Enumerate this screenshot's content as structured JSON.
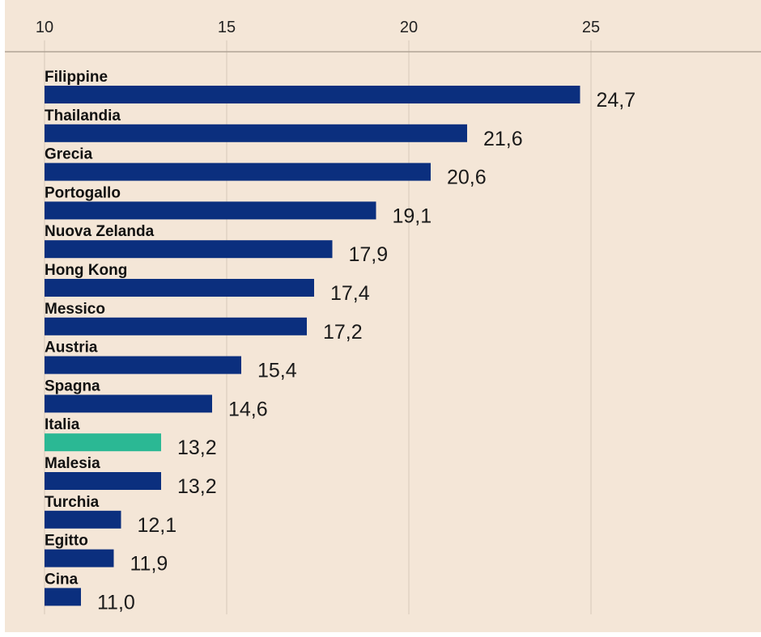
{
  "chart_data": {
    "type": "bar",
    "orientation": "horizontal",
    "title": "",
    "xlabel": "",
    "ylabel": "",
    "xlim": [
      10,
      28.5
    ],
    "ticks": [
      10,
      15,
      20,
      25
    ],
    "tick_labels": [
      "10",
      "15",
      "20",
      "25"
    ],
    "grid": true,
    "categories": [
      "Filippine",
      "Thailandia",
      "Grecia",
      "Portogallo",
      "Nuova Zelanda",
      "Hong Kong",
      "Messico",
      "Austria",
      "Spagna",
      "Italia",
      "Malesia",
      "Turchia",
      "Egitto",
      "Cina"
    ],
    "values": [
      24.7,
      21.6,
      20.6,
      19.1,
      17.9,
      17.4,
      17.2,
      15.4,
      14.6,
      13.2,
      13.2,
      12.1,
      11.9,
      11.0
    ],
    "value_labels": [
      "24,7",
      "21,6",
      "20,6",
      "19,1",
      "17,9",
      "17,4",
      "17,2",
      "15,4",
      "14,6",
      "13,2",
      "13,2",
      "12,1",
      "11,9",
      "11,0"
    ],
    "highlight_category": "Italia",
    "colors": {
      "bar": "#0b2f7e",
      "highlight": "#2bb894",
      "background": "#f4e6d7",
      "grid": "#d6c8ba",
      "axis": "#b0a396"
    }
  }
}
